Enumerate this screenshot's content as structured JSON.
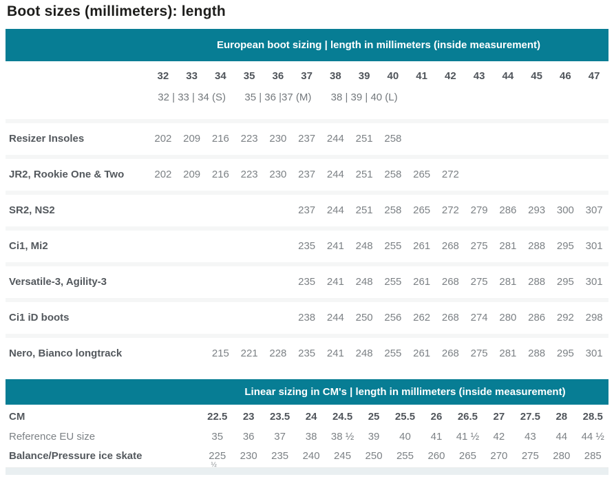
{
  "page": {
    "title": "Boot sizes (millimeters): length"
  },
  "colors": {
    "accent_teal": "#077d94"
  },
  "eu_table": {
    "header": "European boot sizing | length in millimeters (inside measurement)",
    "sizes": [
      "32",
      "33",
      "34",
      "35",
      "36",
      "37",
      "38",
      "39",
      "40",
      "41",
      "42",
      "43",
      "44",
      "45",
      "46",
      "47"
    ],
    "size_groups": [
      "32 | 33 | 34 (S)",
      "35 | 36 |37 (M)",
      "38 | 39 | 40 (L)"
    ],
    "rows": [
      {
        "label": "Resizer Insoles",
        "start_size": 32,
        "values": [
          "202",
          "209",
          "216",
          "223",
          "230",
          "237",
          "244",
          "251",
          "258"
        ]
      },
      {
        "label": "JR2, Rookie One & Two",
        "start_size": 32,
        "values": [
          "202",
          "209",
          "216",
          "223",
          "230",
          "237",
          "244",
          "251",
          "258",
          "265",
          "272"
        ]
      },
      {
        "label": "SR2, NS2",
        "start_size": 37,
        "values": [
          "237",
          "244",
          "251",
          "258",
          "265",
          "272",
          "279",
          "286",
          "293",
          "300",
          "307"
        ]
      },
      {
        "label": "Ci1, Mi2",
        "start_size": 37,
        "values": [
          "235",
          "241",
          "248",
          "255",
          "261",
          "268",
          "275",
          "281",
          "288",
          "295",
          "301"
        ]
      },
      {
        "label": "Versatile-3, Agility-3",
        "start_size": 37,
        "values": [
          "235",
          "241",
          "248",
          "255",
          "261",
          "268",
          "275",
          "281",
          "288",
          "295",
          "301"
        ]
      },
      {
        "label": "Ci1 iD boots",
        "start_size": 37,
        "values": [
          "238",
          "244",
          "250",
          "256",
          "262",
          "268",
          "274",
          "280",
          "286",
          "292",
          "298"
        ]
      },
      {
        "label": "Nero, Bianco longtrack",
        "start_size": 34,
        "values": [
          "215",
          "221",
          "228",
          "235",
          "241",
          "248",
          "255",
          "261",
          "268",
          "275",
          "281",
          "288",
          "295",
          "301"
        ]
      }
    ]
  },
  "cm_table": {
    "header": "Linear sizing in CM's | length in millimeters (inside measurement)",
    "rows": [
      {
        "label": "CM",
        "bold": true,
        "bold_values": true,
        "values": [
          "22.5",
          "23",
          "23.5",
          "24",
          "24.5",
          "25",
          "25.5",
          "26",
          "26.5",
          "27",
          "27.5",
          "28",
          "28.5"
        ]
      },
      {
        "label": "Reference EU size",
        "bold": false,
        "bold_values": false,
        "values": [
          "35",
          "36",
          "37",
          "38",
          "38 ½",
          "39",
          "40",
          "41",
          "41 ½",
          "42",
          "43",
          "44",
          "44 ½"
        ]
      },
      {
        "label": "Balance/Pressure ice skate",
        "bold": true,
        "bold_values": false,
        "artifact_under_first": "½",
        "values": [
          "225",
          "230",
          "235",
          "240",
          "245",
          "250",
          "255",
          "260",
          "265",
          "270",
          "275",
          "280",
          "285"
        ]
      }
    ]
  }
}
